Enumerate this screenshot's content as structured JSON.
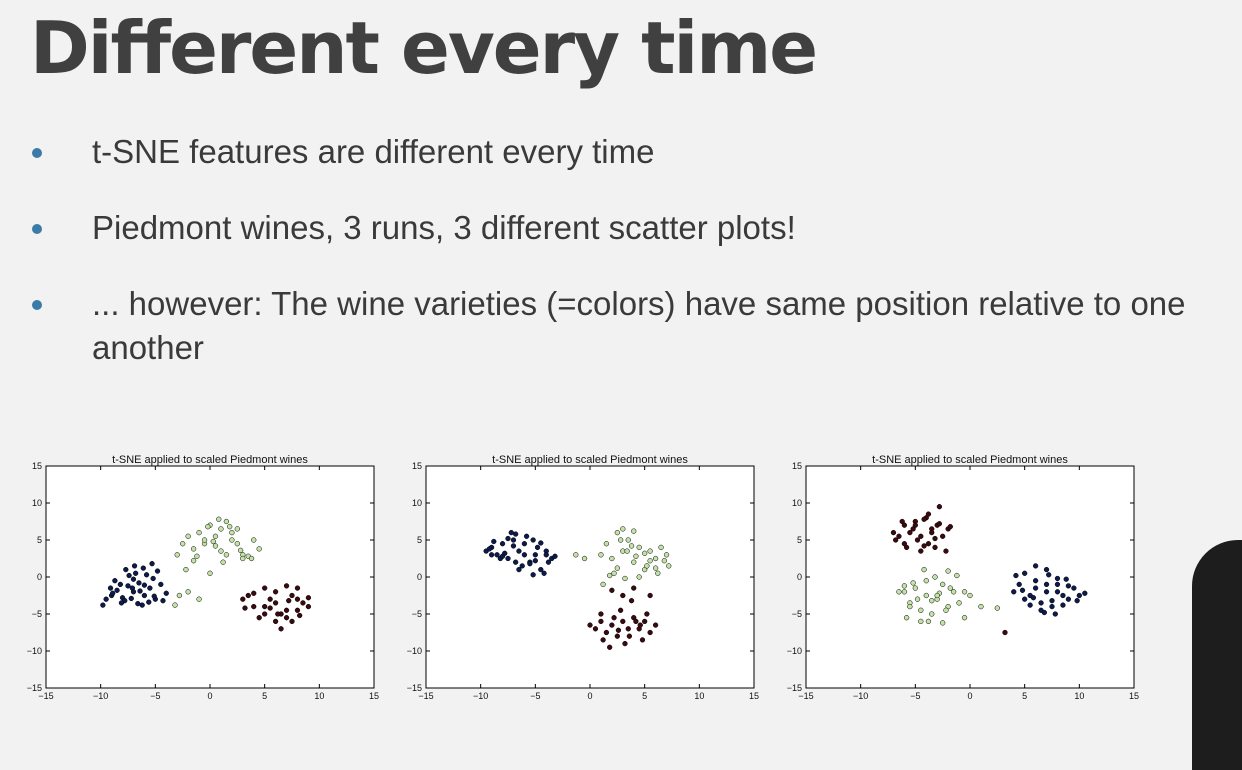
{
  "slide": {
    "title": "Different every time",
    "bullets": [
      {
        "text": "t-SNE features are different every time"
      },
      {
        "text": "Piedmont wines, 3 runs, 3 different scatter plots!"
      },
      {
        "text": "... however: The wine varieties (=colors) have same position relative to one another"
      }
    ]
  },
  "colors": {
    "class_0": "#0d1b4c",
    "class_1": "#c3e3a6",
    "class_2": "#3b0a0e",
    "bullet": "#3b7ba8"
  },
  "chart_data": [
    {
      "type": "scatter",
      "title": "t-SNE applied to scaled Piedmont wines",
      "xlim": [
        -15,
        15
      ],
      "ylim": [
        -15,
        15
      ],
      "xticks": [
        "−15",
        "−10",
        "−5",
        "0",
        "5",
        "10",
        "15"
      ],
      "yticks": [
        "15",
        "10",
        "5",
        "0",
        "−5",
        "−10",
        "−15"
      ],
      "series": [
        {
          "color": "#0d1b4c",
          "x": [
            -9.5,
            -9,
            -8.5,
            -8,
            -7.5,
            -7,
            -6.5,
            -6,
            -5.5,
            -5,
            -4.5,
            -4,
            -9.8,
            -8.7,
            -7.8,
            -6.8,
            -5.8,
            -4.8,
            -8.2,
            -7.2,
            -6.2,
            -5.2,
            -9.1,
            -8.1,
            -7.1,
            -6.1,
            -5.1,
            -7.4,
            -6.4,
            -5.6,
            -6.9,
            -7.7,
            -4.3,
            -8.9,
            -6.6,
            -5.3,
            -7,
            -6
          ],
          "y": [
            -3,
            -2.5,
            -1.8,
            -2.8,
            -1.2,
            -2,
            -0.8,
            -2.5,
            -1.5,
            -3,
            -1,
            -2.2,
            -3.8,
            -0.5,
            -3.2,
            0.5,
            0.3,
            0.8,
            -1,
            -2.9,
            -3.8,
            -0.2,
            -1.5,
            -3.5,
            -1.5,
            1.2,
            -2.6,
            0.2,
            -1.9,
            -3.4,
            1.5,
            1,
            -3.2,
            -2.2,
            -3.6,
            1.8,
            -0.3,
            -1.1
          ]
        },
        {
          "color": "#c3e3a6",
          "x": [
            -3,
            -2.5,
            -2,
            -1.5,
            -1,
            -0.5,
            0,
            0.5,
            1,
            1.5,
            2,
            2.5,
            3,
            3.5,
            4,
            -2,
            -1,
            0,
            1,
            2,
            3,
            -1.5,
            0.5,
            1.5,
            2.5,
            -0.5,
            0.8,
            1.8,
            -2.8,
            -3.2,
            -2.2,
            3.8,
            2.8,
            1.2,
            -0.2,
            4.5,
            -1.2,
            0.3
          ],
          "y": [
            3,
            4.5,
            5.5,
            3.8,
            6,
            4.5,
            7,
            5.5,
            6.5,
            7.5,
            5,
            4.5,
            3,
            2.8,
            5,
            -2,
            -3,
            0.5,
            3.5,
            6,
            2.5,
            2.2,
            4.2,
            3,
            6.5,
            5,
            7.8,
            6.8,
            -2.5,
            -3.8,
            1,
            2.5,
            3.6,
            2,
            6.8,
            3.8,
            2.8,
            4.8
          ]
        },
        {
          "color": "#3b0a0e",
          "x": [
            3,
            4,
            5,
            6,
            7,
            8,
            9,
            3.5,
            4.5,
            5.5,
            6.5,
            7.5,
            8.5,
            5,
            6,
            7,
            8,
            4,
            5,
            6,
            7,
            8,
            6.5,
            7.5,
            5.5,
            9,
            3.2,
            6.2,
            7.2,
            8.2
          ],
          "y": [
            -3,
            -4,
            -5,
            -3.5,
            -4.5,
            -3,
            -4,
            -2.5,
            -5.5,
            -3,
            -5,
            -2.5,
            -3.5,
            -4,
            -6,
            -5.5,
            -4.5,
            -2.2,
            -1.5,
            -2,
            -1.2,
            -1.5,
            -7,
            -6,
            -4.2,
            -2.8,
            -4.2,
            -5,
            -3.2,
            -5.2
          ]
        }
      ]
    },
    {
      "type": "scatter",
      "title": "t-SNE applied to scaled Piedmont wines",
      "xlim": [
        -15,
        15
      ],
      "ylim": [
        -15,
        15
      ],
      "xticks": [
        "−15",
        "−10",
        "−5",
        "0",
        "5",
        "10",
        "15"
      ],
      "yticks": [
        "15",
        "10",
        "5",
        "0",
        "−5",
        "−10",
        "−15"
      ],
      "series": [
        {
          "color": "#0d1b4c",
          "x": [
            -9.5,
            -9,
            -8.5,
            -8,
            -7.5,
            -7,
            -6.5,
            -6,
            -5.5,
            -5,
            -4.5,
            -4,
            -3.5,
            -8.8,
            -7.8,
            -6.8,
            -5.8,
            -4.8,
            -3.8,
            -8.2,
            -7.2,
            -6.2,
            -5.2,
            -4.2,
            -9.2,
            -7,
            -6,
            -5,
            -4.5,
            -6.5,
            -5.5,
            -3.2,
            -8,
            -7.5,
            -6.8,
            -5.2,
            -4,
            -9
          ],
          "y": [
            3.5,
            4,
            3,
            4.5,
            2.5,
            5,
            3.5,
            4.5,
            2,
            3,
            1,
            3.5,
            2.5,
            4.8,
            3.2,
            2,
            5.5,
            4,
            2,
            2.5,
            6,
            1.5,
            5,
            0.5,
            3.8,
            4.2,
            3,
            2.2,
            4.6,
            1,
            1.8,
            2.8,
            2.8,
            5.2,
            5.8,
            0.3,
            3,
            3
          ]
        },
        {
          "color": "#c3e3a6",
          "x": [
            1,
            1.5,
            2,
            2.5,
            3,
            3.5,
            4,
            4.5,
            5,
            5.5,
            6,
            6.5,
            7,
            1.2,
            2.2,
            3.2,
            4.2,
            5.2,
            6.2,
            3,
            4,
            5,
            6,
            2.5,
            3.8,
            5.5,
            6.8,
            -1.3,
            -0.5,
            4.5,
            2.8,
            7.2,
            1.8,
            3.4
          ],
          "y": [
            3,
            4.5,
            2.5,
            6,
            3.5,
            5,
            2,
            4,
            1,
            3.5,
            2.5,
            4,
            3,
            -1,
            0.5,
            -0.2,
            2.8,
            1.5,
            0.5,
            6.5,
            6.2,
            3.2,
            1.2,
            1.2,
            4.2,
            2.2,
            2.2,
            3,
            2.5,
            0,
            5,
            1.5,
            0.2,
            3.5
          ]
        },
        {
          "color": "#3b0a0e",
          "x": [
            0,
            0.5,
            1,
            1.5,
            2,
            2.5,
            3,
            3.5,
            4,
            4.5,
            5,
            5.5,
            6,
            1.2,
            2.2,
            3.2,
            4.2,
            5.2,
            2.8,
            3.8,
            1.8,
            4.8,
            2,
            3,
            4,
            5.5,
            1,
            2.6,
            3.6,
            4.6
          ],
          "y": [
            -6.5,
            -7,
            -6,
            -7.5,
            -6.5,
            -8,
            -6,
            -7,
            -5.5,
            -7,
            -6,
            -7.5,
            -6.5,
            -8.5,
            -5.5,
            -9,
            -6,
            -5,
            -4.5,
            -3.2,
            -9.5,
            -8.5,
            -1.8,
            -2.5,
            -1.5,
            -2.5,
            -5,
            -7.2,
            -8,
            -6.5
          ]
        }
      ]
    },
    {
      "type": "scatter",
      "title": "t-SNE applied to scaled Piedmont wines",
      "xlim": [
        -15,
        15
      ],
      "ylim": [
        -15,
        15
      ],
      "xticks": [
        "−15",
        "−10",
        "−5",
        "0",
        "5",
        "10",
        "15"
      ],
      "yticks": [
        "15",
        "10",
        "5",
        "0",
        "−5",
        "−10",
        "−15"
      ],
      "series": [
        {
          "color": "#0d1b4c",
          "x": [
            4,
            4.5,
            5,
            5.5,
            6,
            6.5,
            7,
            7.5,
            8,
            8.5,
            9,
            9.5,
            10,
            5,
            6,
            7,
            8,
            9,
            5.5,
            6.5,
            7.5,
            8.5,
            6,
            7,
            8,
            4.2,
            9.8,
            6.8,
            7.8,
            5.8,
            10.5,
            4.8,
            8.8,
            7.2
          ],
          "y": [
            -2,
            -1,
            -3,
            -2.5,
            -1.5,
            -3.5,
            -2,
            -4,
            -1,
            -2.5,
            -3,
            -1.5,
            -2.5,
            0.5,
            -0.5,
            1,
            -0.2,
            -1.2,
            -3.8,
            -4.5,
            -3.2,
            -3.8,
            1.5,
            -1,
            -2,
            0.2,
            -3.2,
            -4.8,
            -5,
            -2.8,
            -2.2,
            -1.8,
            -0.3,
            0.3
          ]
        },
        {
          "color": "#c3e3a6",
          "x": [
            -6,
            -5.5,
            -5,
            -4.5,
            -4,
            -3.5,
            -3,
            -2.5,
            -2,
            -1.5,
            -1,
            -0.5,
            -5.8,
            -4.8,
            -3.8,
            -2.8,
            -1.8,
            -5.2,
            -4.2,
            -3.2,
            -2.2,
            -4.5,
            -3.5,
            -2.5,
            1,
            2.5,
            -6.5,
            -6,
            -0.5,
            -4,
            -3,
            -1.2,
            -5.5,
            -2,
            0
          ],
          "y": [
            -2,
            -3.5,
            -1.5,
            -4.5,
            -2.5,
            -5,
            -3,
            -1,
            -4,
            -2,
            -3.5,
            -5.5,
            -5.5,
            -3,
            -6,
            -2.2,
            -1.5,
            -0.8,
            1,
            0,
            -4.5,
            -6,
            -3.2,
            -6.2,
            -4,
            -4.2,
            -2,
            -1.2,
            -2,
            -0.5,
            -2.5,
            0.2,
            -4,
            0.8,
            -2.5
          ]
        },
        {
          "color": "#3b0a0e",
          "x": [
            -7,
            -6.5,
            -6,
            -5.5,
            -5,
            -4.5,
            -4,
            -3.5,
            -3,
            -2.5,
            -2,
            -6.8,
            -5.8,
            -4.8,
            -3.8,
            -2.8,
            -1.8,
            -6.2,
            -5.2,
            -4.2,
            -3.2,
            -4.5,
            -3.5,
            -2.2,
            -6,
            -5,
            -3.8,
            -2.8,
            -4.2,
            -3.2,
            3.2
          ],
          "y": [
            6,
            5.5,
            7,
            6,
            7.5,
            5.5,
            8,
            6.5,
            7,
            5.5,
            6.5,
            5,
            4,
            5,
            4.5,
            7.2,
            6.8,
            7.5,
            6.5,
            4.2,
            4,
            3.5,
            6,
            3.5,
            4.5,
            7,
            8.5,
            9.5,
            7.8,
            5.2,
            -7.5
          ]
        }
      ]
    }
  ]
}
